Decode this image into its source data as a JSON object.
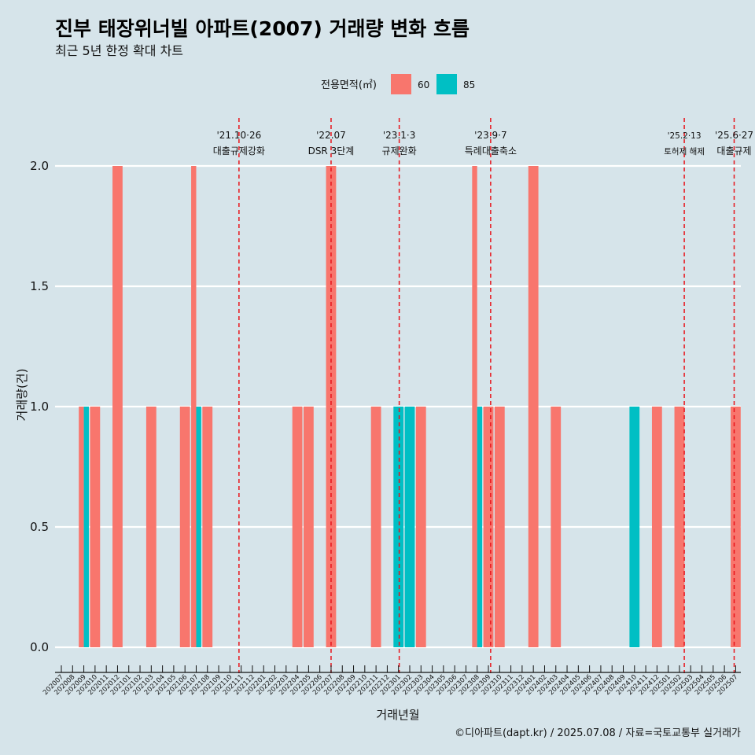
{
  "chart_data": {
    "type": "bar",
    "title": "진부 태장위너빌 아파트(2007) 거래량 변화 흐름",
    "subtitle": "최근 5년 한정 확대 차트",
    "xlabel": "거래년월",
    "ylabel": "거래량(건)",
    "caption": "©디아파트(dapt.kr) / 2025.07.08 / 자료=국토교통부 실거래가",
    "ylim": [
      -0.1,
      2.2
    ],
    "yticks": [
      "0.0",
      "0.5",
      "1.0",
      "1.5",
      "2.0"
    ],
    "grid": true,
    "legend": {
      "title": "전용면적(㎡)",
      "position": "top",
      "entries": [
        {
          "name": "60",
          "color": "#f8766d"
        },
        {
          "name": "85",
          "color": "#00bfc4"
        }
      ]
    },
    "months": [
      "202007",
      "202008",
      "202009",
      "202010",
      "202011",
      "202012",
      "202101",
      "202102",
      "202103",
      "202104",
      "202105",
      "202106",
      "202107",
      "202108",
      "202109",
      "202110",
      "202111",
      "202112",
      "202201",
      "202202",
      "202203",
      "202204",
      "202205",
      "202206",
      "202207",
      "202208",
      "202209",
      "202210",
      "202211",
      "202212",
      "202301",
      "202302",
      "202303",
      "202304",
      "202305",
      "202306",
      "202307",
      "202308",
      "202309",
      "202310",
      "202311",
      "202312",
      "202401",
      "202402",
      "202403",
      "202404",
      "202405",
      "202406",
      "202407",
      "202408",
      "202409",
      "202410",
      "202411",
      "202412",
      "202501",
      "202502",
      "202503",
      "202504",
      "202505",
      "202506",
      "202507"
    ],
    "bars": [
      {
        "month": "202009",
        "area": "60",
        "value": 1
      },
      {
        "month": "202009",
        "area": "85",
        "value": 1
      },
      {
        "month": "202010",
        "area": "60",
        "value": 1
      },
      {
        "month": "202012",
        "area": "60",
        "value": 2
      },
      {
        "month": "202103",
        "area": "60",
        "value": 1
      },
      {
        "month": "202106",
        "area": "60",
        "value": 1
      },
      {
        "month": "202107",
        "area": "60",
        "value": 2
      },
      {
        "month": "202107",
        "area": "85",
        "value": 1
      },
      {
        "month": "202108",
        "area": "60",
        "value": 1
      },
      {
        "month": "202204",
        "area": "60",
        "value": 1
      },
      {
        "month": "202205",
        "area": "60",
        "value": 1
      },
      {
        "month": "202207",
        "area": "60",
        "value": 2
      },
      {
        "month": "202211",
        "area": "60",
        "value": 1
      },
      {
        "month": "202301",
        "area": "85",
        "value": 1
      },
      {
        "month": "202302",
        "area": "85",
        "value": 1
      },
      {
        "month": "202303",
        "area": "60",
        "value": 1
      },
      {
        "month": "202308",
        "area": "60",
        "value": 2
      },
      {
        "month": "202308",
        "area": "85",
        "value": 1
      },
      {
        "month": "202309",
        "area": "60",
        "value": 1
      },
      {
        "month": "202310",
        "area": "60",
        "value": 1
      },
      {
        "month": "202401",
        "area": "60",
        "value": 2
      },
      {
        "month": "202403",
        "area": "60",
        "value": 1
      },
      {
        "month": "202410",
        "area": "85",
        "value": 1
      },
      {
        "month": "202412",
        "area": "60",
        "value": 1
      },
      {
        "month": "202502",
        "area": "60",
        "value": 1
      },
      {
        "month": "202507",
        "area": "60",
        "value": 1
      }
    ],
    "annotations": [
      {
        "x": "2021-10-26",
        "line1": "'21.10·26",
        "line2": "대출규제강화",
        "style": "normal"
      },
      {
        "x": "2022-07-01",
        "line1": "'22.07",
        "line2": "DSR 3단계",
        "style": "normal"
      },
      {
        "x": "2023-01-03",
        "line1": "'23.1·3",
        "line2": "규제완화",
        "style": "normal"
      },
      {
        "x": "2023-09-07",
        "line1": "'23.9·7",
        "line2": "특례대출축소",
        "style": "normal"
      },
      {
        "x": "2025-02-13",
        "line1": "'25.2·13",
        "line2": "토허제 해제",
        "style": "small"
      },
      {
        "x": "2025-06-27",
        "line1": "'25.6·27",
        "line2": "대출규제",
        "style": "normal"
      }
    ]
  }
}
